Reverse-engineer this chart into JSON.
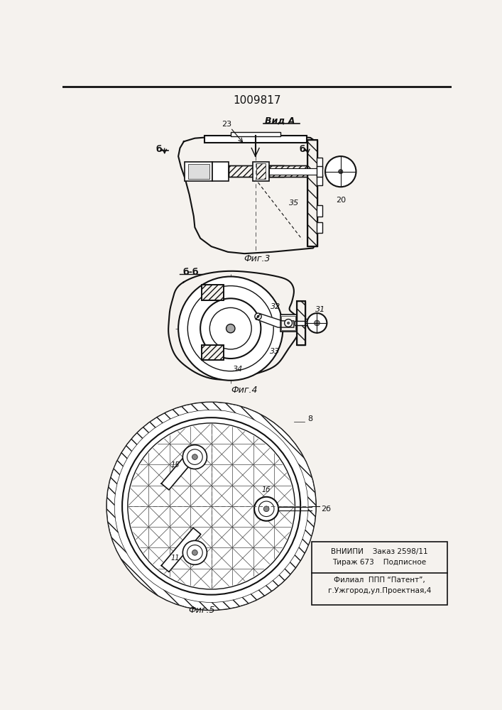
{
  "title": "1009817",
  "fig3_label": "Фиг.3",
  "fig4_label": "Фиг.4",
  "fig5_label": "Фиг.5",
  "vid_a_label": "Вид A",
  "footer_line1": "ВНИИПИ    Заказ 2598/11",
  "footer_line2": "Тираж 673    Подписное",
  "footer_line3": "Филиал  ППП “Патент”,",
  "footer_line4": "г.Ужгород,ул.Проектная,4",
  "bg_color": "#f5f2ee",
  "line_color": "#111111"
}
